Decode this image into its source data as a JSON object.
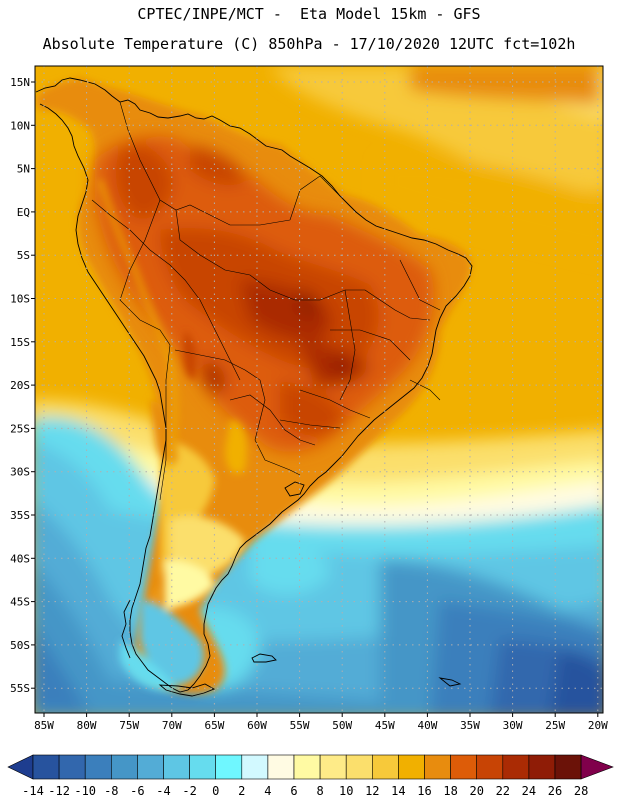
{
  "header": {
    "line1": "CPTEC/INPE/MCT -  Eta Model 15km - GFS",
    "line2": "Absolute Temperature (C) 850hPa - 17/10/2020 12UTC fct=102h"
  },
  "map": {
    "lat_labels": [
      "15N",
      "10N",
      "5N",
      "EQ",
      "5S",
      "10S",
      "15S",
      "20S",
      "25S",
      "30S",
      "35S",
      "40S",
      "45S",
      "50S",
      "55S"
    ],
    "lon_labels": [
      "85W",
      "80W",
      "75W",
      "70W",
      "65W",
      "60W",
      "55W",
      "50W",
      "45W",
      "40W",
      "35W",
      "30W",
      "25W",
      "20W"
    ]
  },
  "colorbar": {
    "labels": [
      "-14",
      "-12",
      "-10",
      "-8",
      "-6",
      "-4",
      "-2",
      "0",
      "2",
      "4",
      "6",
      "8",
      "10",
      "12",
      "14",
      "16",
      "18",
      "20",
      "22",
      "24",
      "26",
      "28"
    ],
    "colors": [
      "#1e3d8f",
      "#27539e",
      "#3267ad",
      "#3b7fbc",
      "#4596c7",
      "#53acd6",
      "#5ec6e4",
      "#66dcee",
      "#6ff7ff",
      "#d2f9ff",
      "#fffbe3",
      "#fffaa3",
      "#feeb88",
      "#fbdf6c",
      "#f7c93a",
      "#f1b000",
      "#e88c0e",
      "#dd5c08",
      "#c84405",
      "#aa2b04",
      "#8f1c06",
      "#6b1208",
      "#80004b"
    ]
  }
}
